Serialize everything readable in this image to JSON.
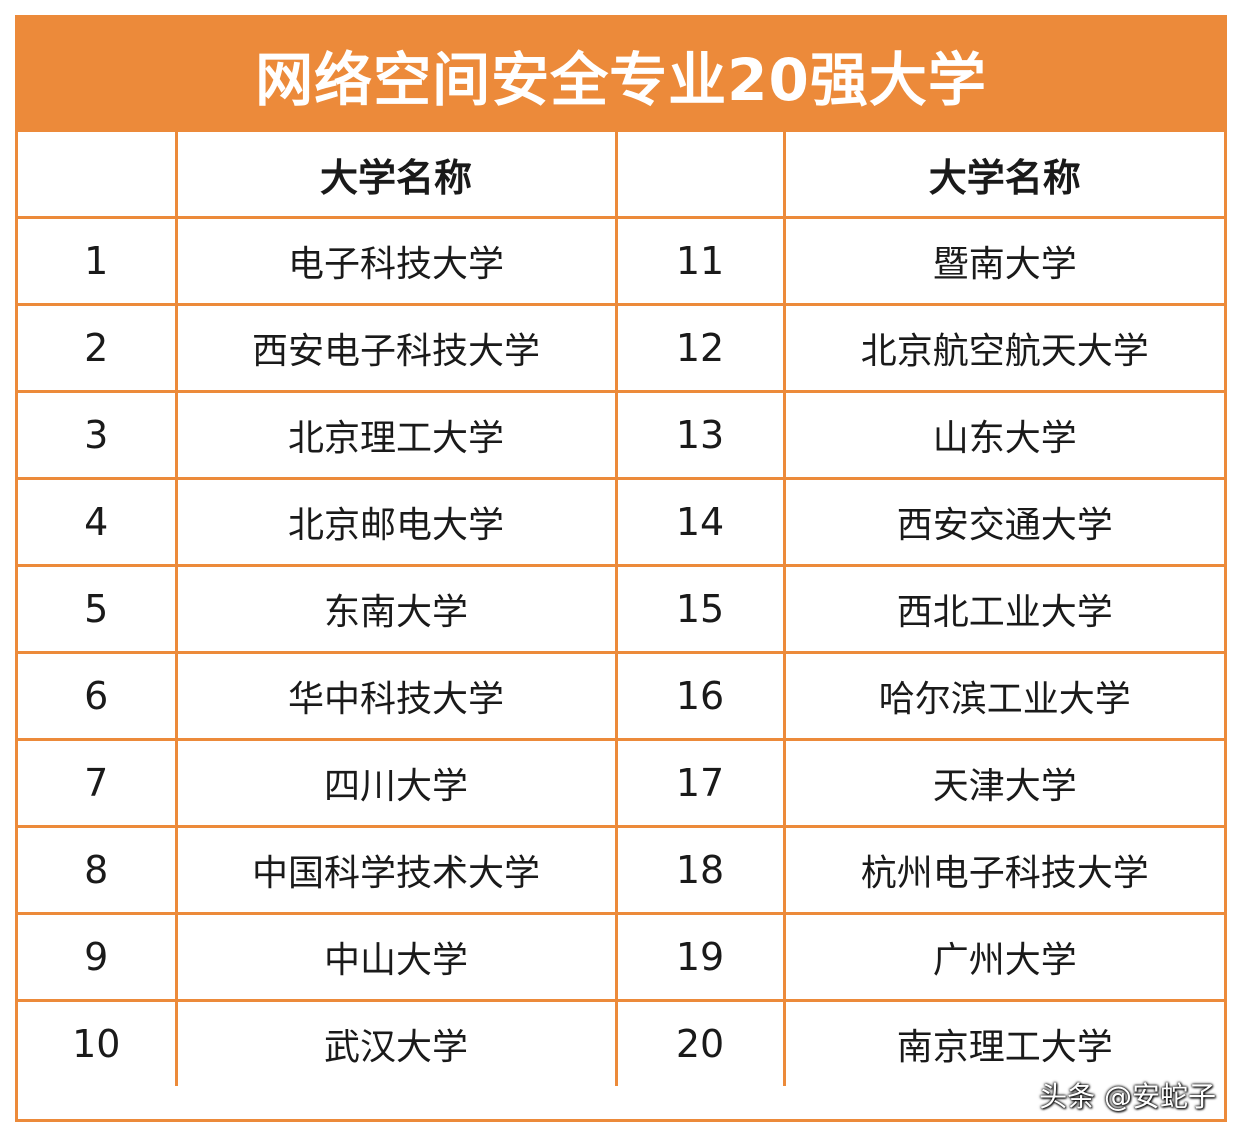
{
  "title": "网络空间安全专业20强大学",
  "header": {
    "rank_left": "",
    "name_left": "大学名称",
    "rank_right": "",
    "name_right": "大学名称"
  },
  "rows": [
    {
      "rank_a": "1",
      "name_a": "电子科技大学",
      "rank_b": "11",
      "name_b": "暨南大学"
    },
    {
      "rank_a": "2",
      "name_a": "西安电子科技大学",
      "rank_b": "12",
      "name_b": "北京航空航天大学"
    },
    {
      "rank_a": "3",
      "name_a": "北京理工大学",
      "rank_b": "13",
      "name_b": "山东大学"
    },
    {
      "rank_a": "4",
      "name_a": "北京邮电大学",
      "rank_b": "14",
      "name_b": "西安交通大学"
    },
    {
      "rank_a": "5",
      "name_a": "东南大学",
      "rank_b": "15",
      "name_b": "西北工业大学"
    },
    {
      "rank_a": "6",
      "name_a": "华中科技大学",
      "rank_b": "16",
      "name_b": "哈尔滨工业大学"
    },
    {
      "rank_a": "7",
      "name_a": "四川大学",
      "rank_b": "17",
      "name_b": "天津大学"
    },
    {
      "rank_a": "8",
      "name_a": "中国科学技术大学",
      "rank_b": "18",
      "name_b": "杭州电子科技大学"
    },
    {
      "rank_a": "9",
      "name_a": "中山大学",
      "rank_b": "19",
      "name_b": "广州大学"
    },
    {
      "rank_a": "10",
      "name_a": "武汉大学",
      "rank_b": "20",
      "name_b": "南京理工大学"
    }
  ],
  "watermark": "头条 @安蛇子",
  "colors": {
    "accent": "#ec8a3a",
    "text": "#1a1a1a",
    "title_text": "#ffffff"
  }
}
